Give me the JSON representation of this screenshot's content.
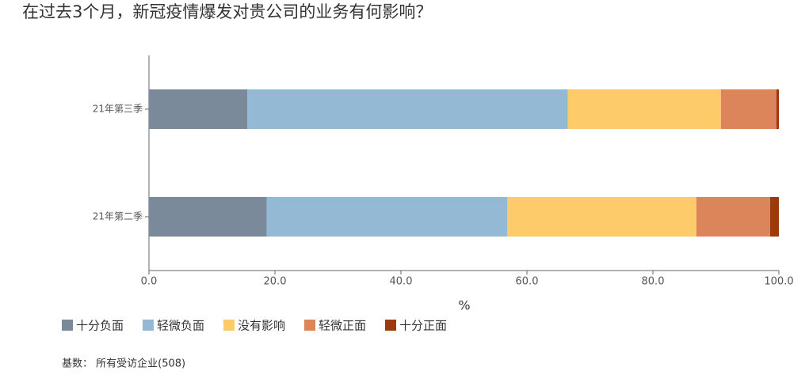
{
  "chart_data": {
    "type": "stacked-bar-horizontal",
    "title": "在过去3个月，新冠疫情爆发对贵公司的业务有何影响？",
    "categories": [
      "21年第三季",
      "21年第二季"
    ],
    "series": [
      {
        "name": "十分负面",
        "color": "#7a8a9a",
        "values": [
          15.6,
          18.7
        ]
      },
      {
        "name": "轻微负面",
        "color": "#93b9d5",
        "values": [
          50.9,
          38.2
        ]
      },
      {
        "name": "没有影响",
        "color": "#fecb6b",
        "values": [
          24.3,
          30.0
        ]
      },
      {
        "name": "轻微正面",
        "color": "#dc855a",
        "values": [
          8.8,
          11.7
        ]
      },
      {
        "name": "十分正面",
        "color": "#9b3a0c",
        "values": [
          0.4,
          1.4
        ]
      }
    ],
    "x_label": "%",
    "xlim": [
      0,
      100
    ],
    "xticks": [
      {
        "value": 0,
        "label": "0.0"
      },
      {
        "value": 20,
        "label": "20.0"
      },
      {
        "value": 40,
        "label": "40.0"
      },
      {
        "value": 60,
        "label": "60.0"
      },
      {
        "value": 80,
        "label": "80.0"
      },
      {
        "value": 100,
        "label": "100.0"
      }
    ],
    "footnote": "基数： 所有受访企业(508)"
  }
}
